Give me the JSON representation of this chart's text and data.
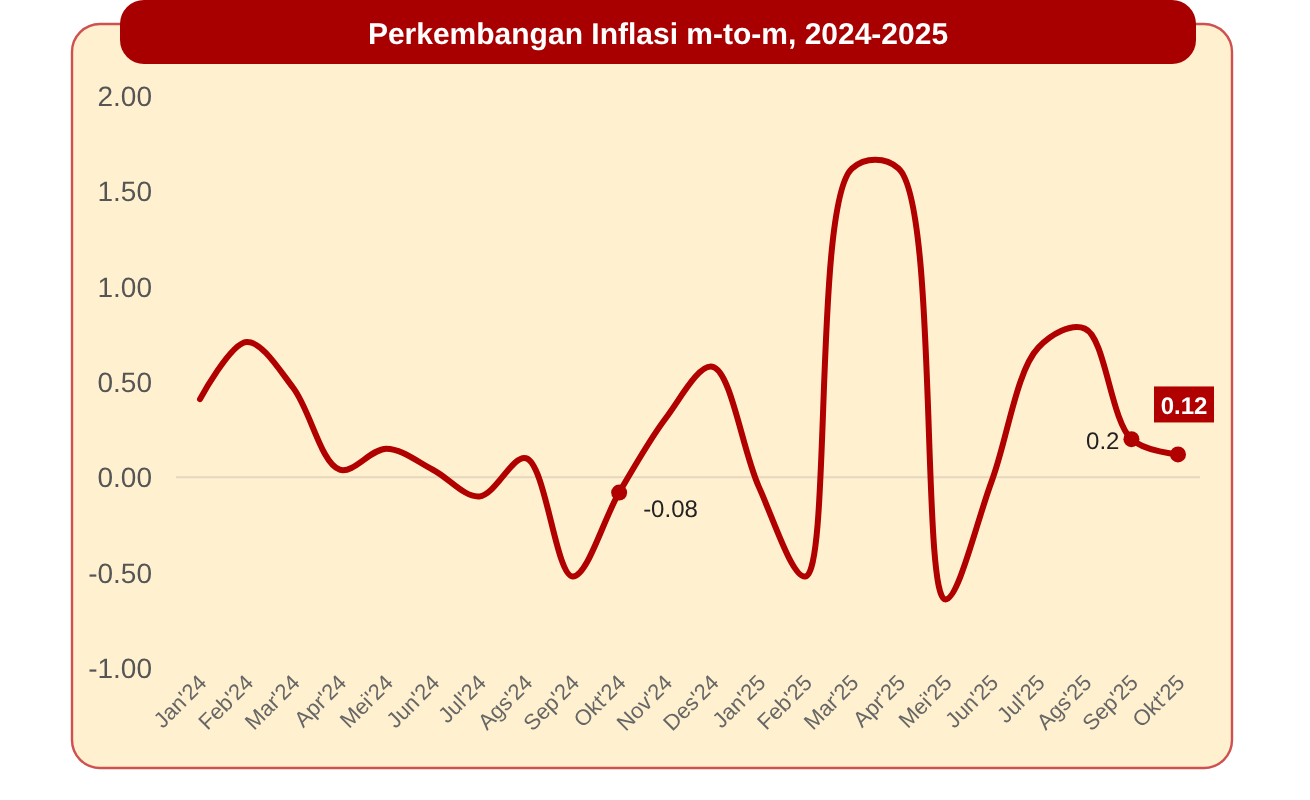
{
  "chart_data": {
    "type": "line",
    "title": "Perkembangan Inflasi m-to-m, 2024-2025",
    "categories": [
      "Jan'24",
      "Feb'24",
      "Mar'24",
      "Apr'24",
      "Mei'24",
      "Jun'24",
      "Jul'24",
      "Ags'24",
      "Sep'24",
      "Okt'24",
      "Nov'24",
      "Des'24",
      "Jan'25",
      "Feb'25",
      "Mar'25",
      "Apr'25",
      "Mei'25",
      "Jun'25",
      "Jul'25",
      "Ags'25",
      "Sep'25",
      "Okt'25"
    ],
    "series": [
      {
        "color": "#b00000",
        "values": [
          0.41,
          0.71,
          0.47,
          0.04,
          0.15,
          0.04,
          -0.1,
          0.1,
          -0.52,
          -0.08,
          0.31,
          0.58,
          -0.05,
          -0.52,
          1.62,
          1.62,
          -0.64,
          -0.02,
          0.68,
          0.78,
          0.2,
          0.12
        ],
        "value_labels": [
          null,
          null,
          null,
          null,
          null,
          null,
          null,
          null,
          null,
          "-0.08",
          null,
          null,
          null,
          null,
          null,
          null,
          null,
          null,
          null,
          null,
          "0.2",
          "0.12"
        ]
      }
    ],
    "ylim": [
      -1,
      2
    ],
    "yticks": [
      {
        "value": -1,
        "label": "-1.00"
      },
      {
        "value": -0.5,
        "label": "-0.50"
      },
      {
        "value": 0,
        "label": "0.00"
      },
      {
        "value": 0.5,
        "label": "0.50"
      },
      {
        "value": 1,
        "label": "1.00"
      },
      {
        "value": 1.5,
        "label": "1.50"
      },
      {
        "value": 2,
        "label": "2.00"
      }
    ],
    "ref_lines": [
      {
        "axis": "y",
        "value": 0,
        "color": "#e6d6c0"
      }
    ],
    "grid": false
  }
}
